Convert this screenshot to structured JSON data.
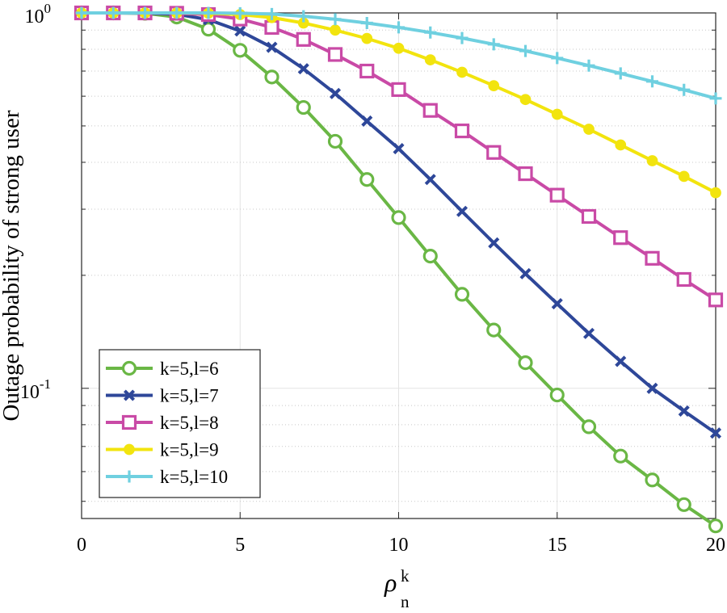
{
  "chart_data": {
    "type": "line",
    "title": "",
    "xlabel": {
      "base": "ρ",
      "sub": "n",
      "sup": "k"
    },
    "ylabel": "Outage probability of strong user",
    "x": [
      0,
      1,
      2,
      3,
      4,
      5,
      6,
      7,
      8,
      9,
      10,
      11,
      12,
      13,
      14,
      15,
      16,
      17,
      18,
      19,
      20
    ],
    "xlim": [
      0,
      20
    ],
    "ylim": [
      0.045,
      1.0
    ],
    "yscale": "log",
    "xticks": [
      "0",
      "5",
      "10",
      "15",
      "20"
    ],
    "yticks": [
      {
        "base": "10",
        "exp": "0",
        "value": 1.0
      },
      {
        "base": "10",
        "exp": "-1",
        "value": 0.1
      }
    ],
    "grid": true,
    "legend_position": "bottom-left",
    "series": [
      {
        "name": "k=5,l=6",
        "color": "#6ab745",
        "marker": "circle",
        "values": [
          1.0,
          1.0,
          0.998,
          0.975,
          0.905,
          0.795,
          0.675,
          0.56,
          0.455,
          0.36,
          0.285,
          0.225,
          0.178,
          0.143,
          0.117,
          0.096,
          0.079,
          0.066,
          0.057,
          0.049,
          0.043
        ]
      },
      {
        "name": "k=5,l=7",
        "color": "#2e4799",
        "marker": "x",
        "values": [
          1.0,
          1.0,
          0.999,
          0.992,
          0.96,
          0.895,
          0.81,
          0.71,
          0.61,
          0.515,
          0.435,
          0.36,
          0.296,
          0.244,
          0.202,
          0.168,
          0.14,
          0.118,
          0.1,
          0.087,
          0.076
        ]
      },
      {
        "name": "k=5,l=8",
        "color": "#c94aa6",
        "marker": "square",
        "values": [
          1.0,
          1.0,
          1.0,
          0.998,
          0.99,
          0.963,
          0.915,
          0.85,
          0.775,
          0.7,
          0.625,
          0.55,
          0.485,
          0.425,
          0.373,
          0.327,
          0.287,
          0.252,
          0.222,
          0.195,
          0.172
        ]
      },
      {
        "name": "k=5,l=9",
        "color": "#f2e40e",
        "marker": "dot",
        "values": [
          1.0,
          1.0,
          1.0,
          1.0,
          0.998,
          0.99,
          0.972,
          0.94,
          0.9,
          0.855,
          0.805,
          0.75,
          0.695,
          0.64,
          0.588,
          0.537,
          0.49,
          0.445,
          0.404,
          0.367,
          0.332
        ]
      },
      {
        "name": "k=5,l=10",
        "color": "#6fd0e0",
        "marker": "plus",
        "values": [
          1.0,
          1.0,
          1.0,
          1.0,
          1.0,
          0.998,
          0.993,
          0.98,
          0.962,
          0.94,
          0.915,
          0.887,
          0.857,
          0.825,
          0.792,
          0.758,
          0.724,
          0.69,
          0.657,
          0.624,
          0.592
        ]
      }
    ]
  }
}
